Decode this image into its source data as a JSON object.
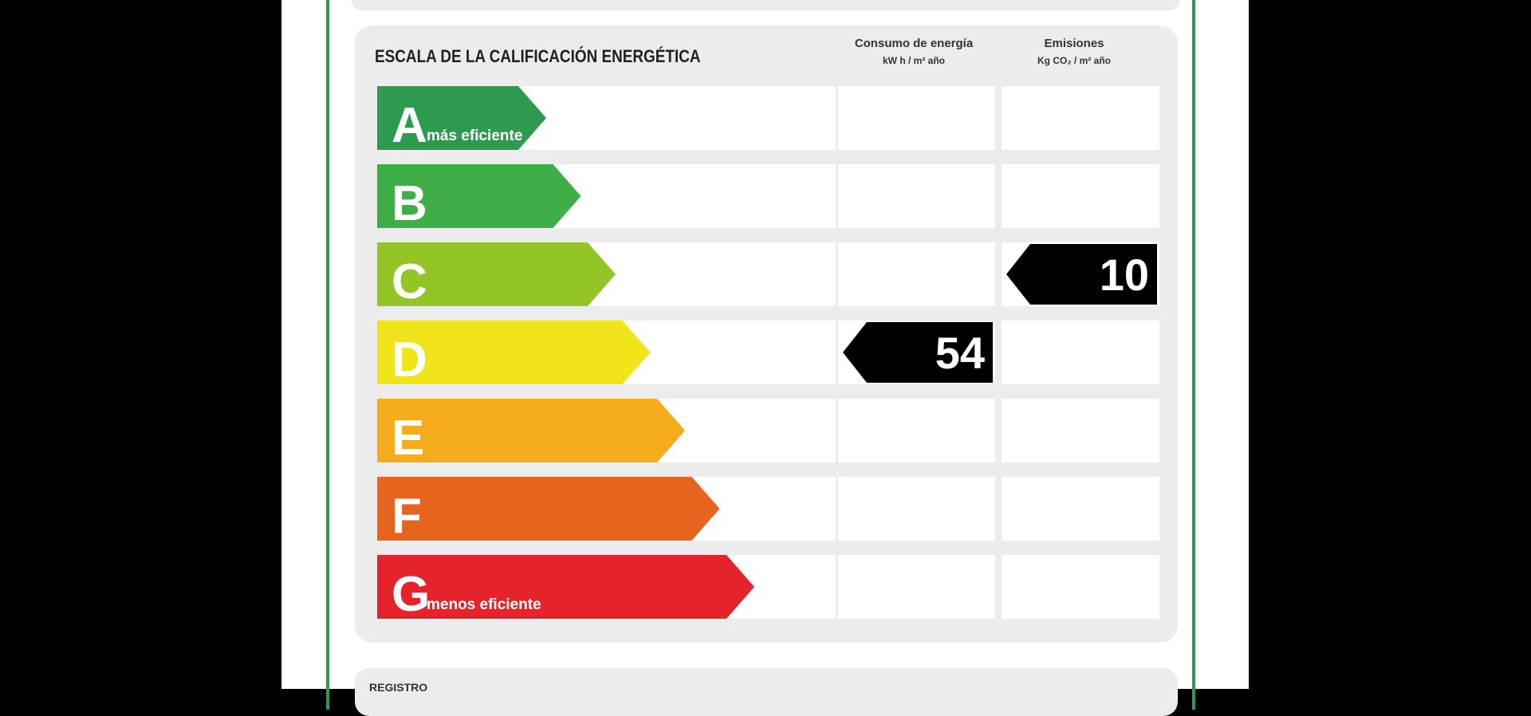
{
  "chart_data": {
    "type": "bar",
    "title": "ESCALA DE LA CALIFICACIÓN ENERGÉTICA",
    "categories": [
      "A",
      "B",
      "C",
      "D",
      "E",
      "F",
      "G"
    ],
    "bars": [
      {
        "letter": "A",
        "sublabel": "más eficiente",
        "color": "#2e9a4f",
        "length": 1
      },
      {
        "letter": "B",
        "sublabel": "",
        "color": "#3fae48",
        "length": 2
      },
      {
        "letter": "C",
        "sublabel": "",
        "color": "#94c527",
        "length": 3
      },
      {
        "letter": "D",
        "sublabel": "",
        "color": "#f0e51b",
        "length": 4
      },
      {
        "letter": "E",
        "sublabel": "",
        "color": "#f4ac1c",
        "length": 5
      },
      {
        "letter": "F",
        "sublabel": "",
        "color": "#e7641f",
        "length": 6
      },
      {
        "letter": "G",
        "sublabel": "menos eficiente",
        "color": "#e4232a",
        "length": 7
      }
    ],
    "columns": [
      {
        "title": "Consumo de energía",
        "unit": "kW h / m² año",
        "value": 54,
        "rating": "D"
      },
      {
        "title": "Emisiones",
        "unit": "Kg CO₂ / m² año",
        "value": 10,
        "rating": "C"
      }
    ],
    "marker_color": "#000000"
  },
  "footer": {
    "label": "REGISTRO"
  }
}
